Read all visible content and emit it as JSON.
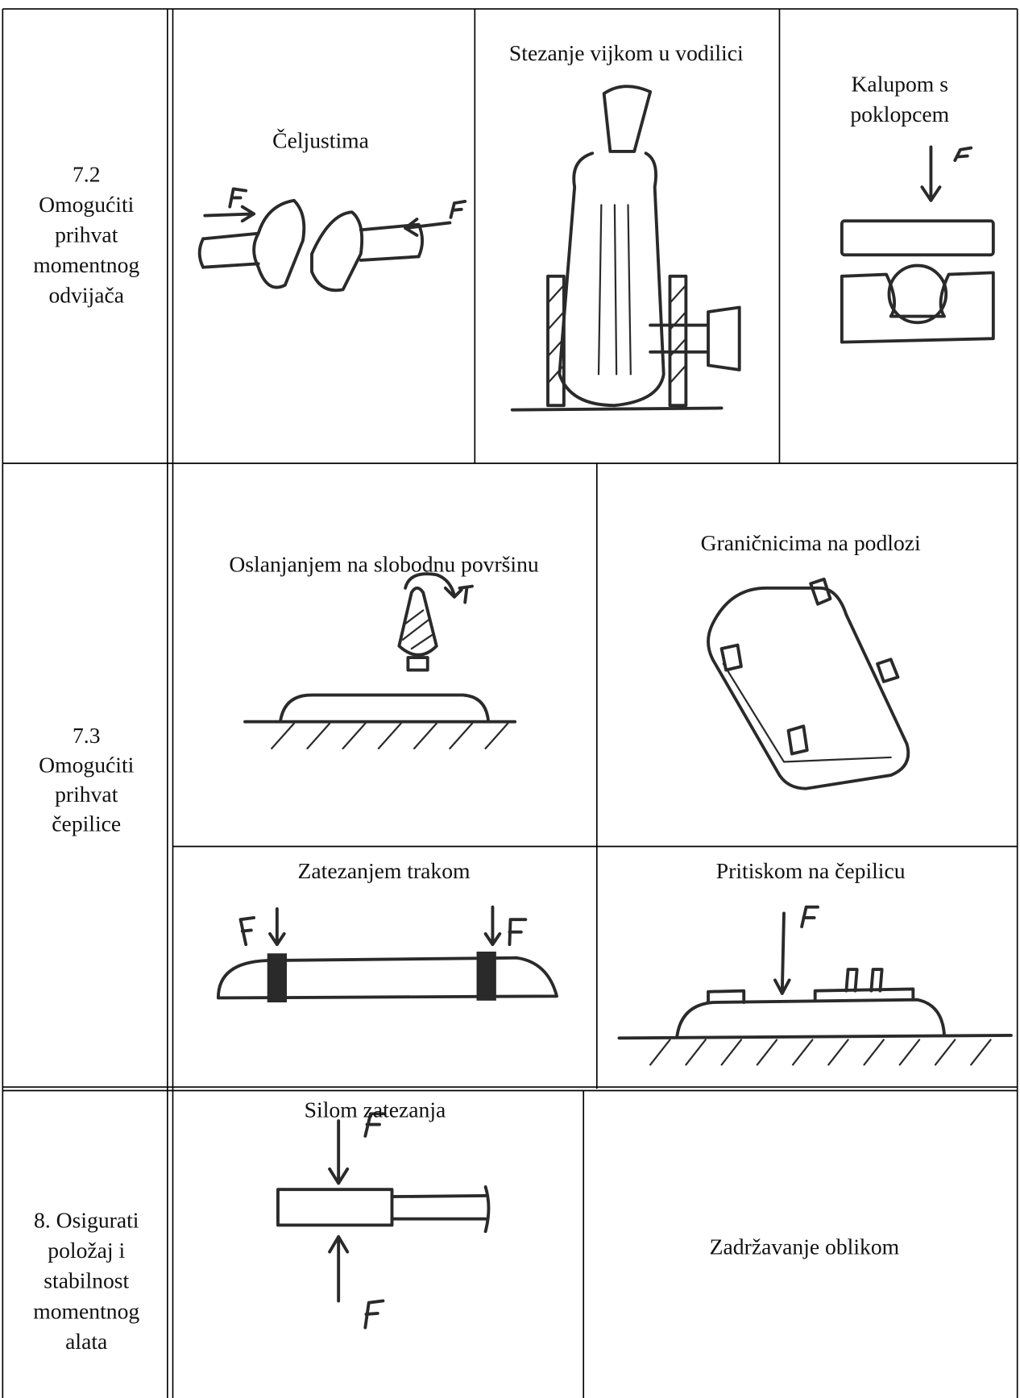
{
  "table": {
    "rows": [
      {
        "label_lines": [
          "7.2",
          "Omogućiti",
          "prihvat",
          "momentnog",
          "odvijača"
        ],
        "cells": [
          {
            "title_lines": [
              "Čeljustima"
            ]
          },
          {
            "title_lines": [
              "Stezanje vijkom u vodilici"
            ]
          },
          {
            "title_lines": [
              "Kalupom s",
              "poklopcem"
            ]
          }
        ]
      },
      {
        "label_lines": [
          "7.3",
          "Omogućiti",
          "prihvat",
          "čepilice"
        ],
        "cells": [
          {
            "title_lines": [
              "Oslanjanjem na slobodnu površinu"
            ]
          },
          {
            "title_lines": [
              "Graničnicima na podlozi"
            ]
          },
          {
            "title_lines": [
              "Zatezanjem trakom"
            ]
          },
          {
            "title_lines": [
              "Pritiskom na čepilicu"
            ]
          }
        ]
      },
      {
        "label_lines": [
          "8. Osigurati",
          "položaj i",
          "stabilnost",
          "momentnog",
          "alata"
        ],
        "cells": [
          {
            "title_lines": [
              "Silom zatezanja"
            ]
          },
          {
            "title_lines": [
              "Zadržavanje oblikom"
            ]
          }
        ]
      }
    ]
  }
}
